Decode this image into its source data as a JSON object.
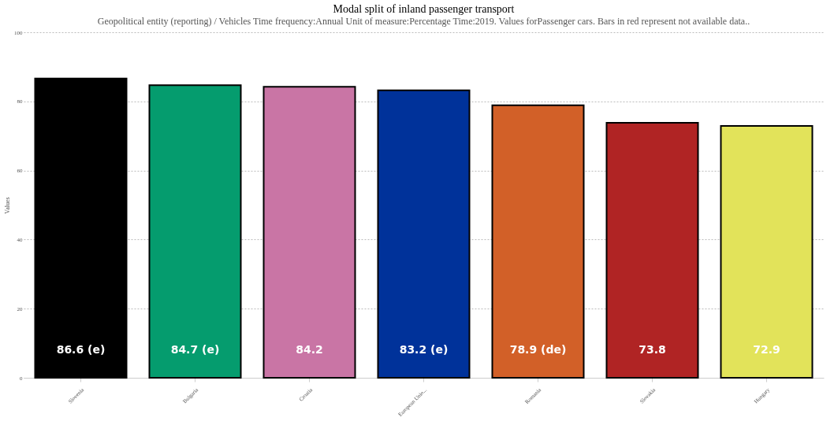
{
  "chart_data": {
    "type": "bar",
    "title": "Modal split of inland passenger transport",
    "subtitle": "Geopolitical entity (reporting) / Vehicles Time frequency:Annual Unit of measure:Percentage Time:2019. Values forPassenger cars. Bars in red represent not available data..",
    "ylabel": "Values",
    "categories": [
      "Slovenia",
      "Bulgaria",
      "Croatia",
      "European Unio...",
      "Romania",
      "Slovakia",
      "Hungary"
    ],
    "values": [
      86.6,
      84.7,
      84.2,
      83.2,
      78.9,
      73.8,
      72.9
    ],
    "value_labels": [
      "86.6 (e)",
      "84.7 (e)",
      "84.2",
      "83.2 (e)",
      "78.9 (de)",
      "73.8",
      "72.9"
    ],
    "colors": [
      "#000000",
      "#059c6e",
      "#c975a5",
      "#00329a",
      "#d26028",
      "#b02424",
      "#e2e35a"
    ],
    "ylim": [
      0,
      100
    ],
    "yticks": [
      0,
      20,
      40,
      60,
      80,
      100
    ],
    "grid": "y"
  }
}
